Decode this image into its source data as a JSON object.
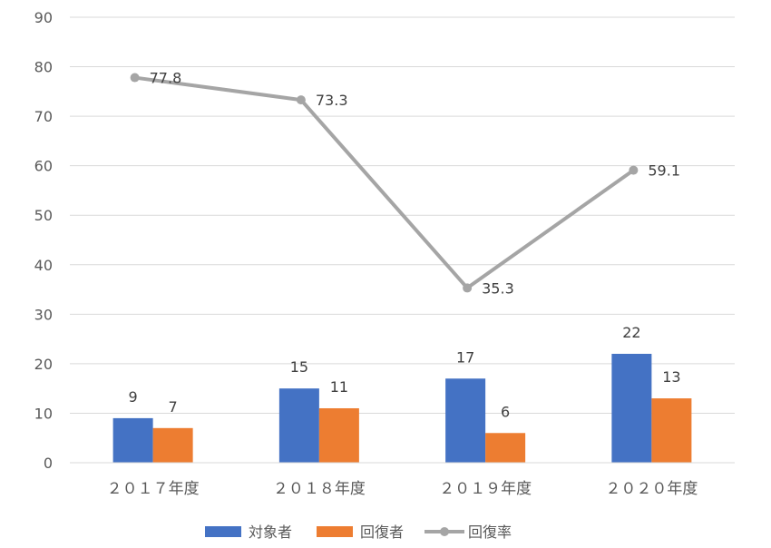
{
  "chart_data": {
    "type": "bar",
    "categories": [
      "２０１７年度",
      "２０１８年度",
      "２０１９年度",
      "２０２０年度"
    ],
    "series": [
      {
        "name": "対象者",
        "type": "bar",
        "values": [
          9,
          15,
          17,
          22
        ],
        "color": "#4472C4"
      },
      {
        "name": "回復者",
        "type": "bar",
        "values": [
          7,
          11,
          6,
          13
        ],
        "color": "#ED7D31"
      },
      {
        "name": "回復率",
        "type": "line",
        "values": [
          77.8,
          73.3,
          35.3,
          59.1
        ],
        "color": "#A5A5A5"
      }
    ],
    "ylim": [
      0,
      90
    ],
    "yticks": [
      0,
      10,
      20,
      30,
      40,
      50,
      60,
      70,
      80,
      90
    ],
    "grid": true,
    "legend": "bottom"
  }
}
